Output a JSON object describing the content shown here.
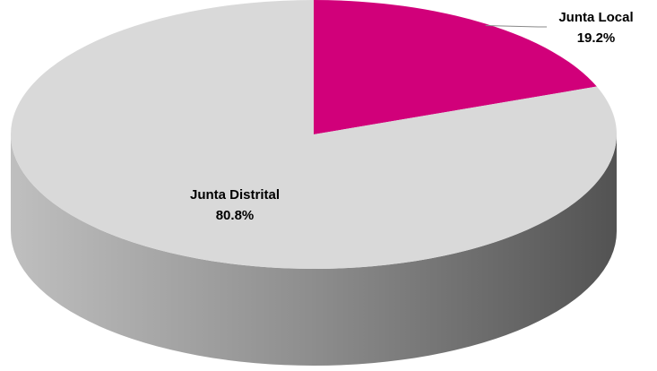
{
  "chart_data": {
    "type": "pie",
    "categories": [
      "Junta Local",
      "Junta Distrital"
    ],
    "values": [
      19.2,
      80.8
    ],
    "value_labels": [
      "19.2%",
      "80.8%"
    ],
    "colors": [
      "#d1007a",
      "#d9d9d9"
    ]
  }
}
